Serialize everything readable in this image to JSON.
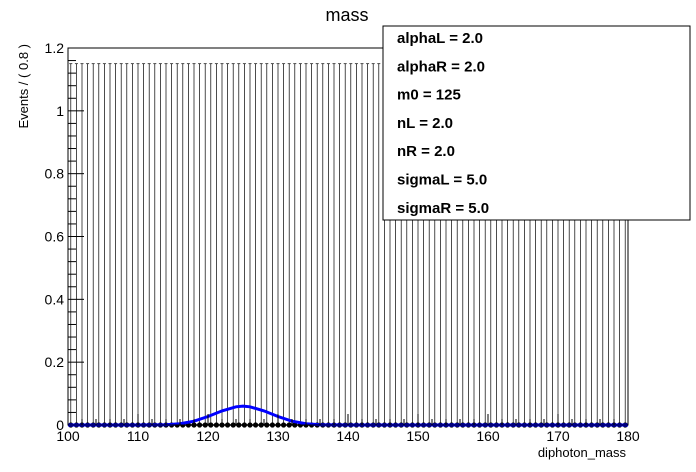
{
  "chart_data": {
    "type": "line",
    "title": "mass",
    "xlabel": "diphoton_mass",
    "ylabel": "Events / ( 0.8 )",
    "xlim": [
      100,
      180
    ],
    "ylim": [
      0,
      1.2
    ],
    "x_ticks": [
      "100",
      "110",
      "120",
      "130",
      "140",
      "150",
      "160",
      "170",
      "180"
    ],
    "y_ticks": [
      "0",
      "0.2",
      "0.4",
      "0.6",
      "0.8",
      "1",
      "1.2"
    ],
    "bin_width": 0.8,
    "error_bar_top": 1.15,
    "data_points_y": 0,
    "series": [
      {
        "color": "#0000ff",
        "x": [
          100,
          110,
          114,
          116,
          118,
          120,
          122,
          124,
          125,
          126,
          128,
          130,
          132,
          134,
          136,
          140,
          150,
          160,
          170,
          180
        ],
        "values": [
          0,
          0,
          0.001,
          0.004,
          0.012,
          0.027,
          0.045,
          0.058,
          0.06,
          0.058,
          0.045,
          0.027,
          0.012,
          0.004,
          0.001,
          0,
          0,
          0,
          0,
          0
        ]
      }
    ],
    "legend_box": {
      "placement": "top-right",
      "entries": [
        "alphaL =  2.0",
        "alphaR =  2.0",
        "m0 =  125",
        "nL =  2.0",
        "nR =  2.0",
        "sigmaL =  5.0",
        "sigmaR =  5.0"
      ]
    }
  }
}
